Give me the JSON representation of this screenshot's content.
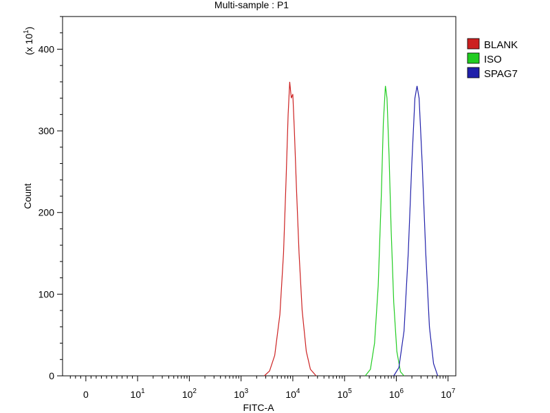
{
  "chart_data": {
    "type": "line",
    "title": "Multi-sample : P1",
    "xlabel": "FITC-A",
    "ylabel": "Count",
    "y_multiplier_prefix": "(x 10",
    "y_multiplier_exp": "1",
    "y_multiplier_suffix": ")",
    "x_scale": "log (biexponential)",
    "x_ticks": [
      {
        "value": 0,
        "base": "0",
        "exp": ""
      },
      {
        "value": 10,
        "base": "10",
        "exp": "1"
      },
      {
        "value": 100,
        "base": "10",
        "exp": "2"
      },
      {
        "value": 1000,
        "base": "10",
        "exp": "3"
      },
      {
        "value": 10000,
        "base": "10",
        "exp": "4"
      },
      {
        "value": 100000,
        "base": "10",
        "exp": "5"
      },
      {
        "value": 1000000,
        "base": "10",
        "exp": "6"
      },
      {
        "value": 10000000,
        "base": "10",
        "exp": "7"
      }
    ],
    "y_ticks": [
      0,
      100,
      200,
      300,
      400
    ],
    "ylim": [
      0,
      440
    ],
    "xlim_decades": [
      -0.45,
      7.15
    ],
    "grid": false,
    "legend_position": "top-right",
    "series": [
      {
        "name": "BLANK",
        "color": "#cc2020",
        "points": [
          [
            3.45,
            0
          ],
          [
            3.55,
            6
          ],
          [
            3.65,
            25
          ],
          [
            3.75,
            75
          ],
          [
            3.82,
            150
          ],
          [
            3.87,
            240
          ],
          [
            3.91,
            320
          ],
          [
            3.94,
            360
          ],
          [
            3.97,
            340
          ],
          [
            4.0,
            345
          ],
          [
            4.03,
            300
          ],
          [
            4.07,
            230
          ],
          [
            4.12,
            150
          ],
          [
            4.18,
            80
          ],
          [
            4.26,
            30
          ],
          [
            4.34,
            8
          ],
          [
            4.45,
            0
          ]
        ]
      },
      {
        "name": "ISO",
        "color": "#20cc20",
        "points": [
          [
            5.4,
            0
          ],
          [
            5.5,
            8
          ],
          [
            5.58,
            40
          ],
          [
            5.65,
            110
          ],
          [
            5.71,
            220
          ],
          [
            5.75,
            310
          ],
          [
            5.79,
            355
          ],
          [
            5.82,
            340
          ],
          [
            5.86,
            270
          ],
          [
            5.9,
            180
          ],
          [
            5.95,
            90
          ],
          [
            6.01,
            30
          ],
          [
            6.08,
            5
          ],
          [
            6.15,
            0
          ]
        ]
      },
      {
        "name": "SPAG7",
        "color": "#2020aa",
        "points": [
          [
            5.95,
            0
          ],
          [
            6.05,
            10
          ],
          [
            6.15,
            55
          ],
          [
            6.23,
            150
          ],
          [
            6.3,
            260
          ],
          [
            6.36,
            340
          ],
          [
            6.4,
            355
          ],
          [
            6.44,
            340
          ],
          [
            6.5,
            260
          ],
          [
            6.57,
            150
          ],
          [
            6.64,
            60
          ],
          [
            6.72,
            15
          ],
          [
            6.8,
            0
          ]
        ]
      }
    ]
  }
}
